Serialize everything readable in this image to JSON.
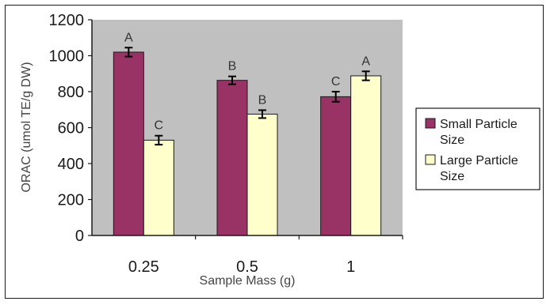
{
  "chart_data": {
    "type": "bar",
    "xlabel": "Sample Mass (g)",
    "ylabel": "ORAC (umol TE/g DW)",
    "categories": [
      "0.25",
      "0.5",
      "1"
    ],
    "ylim": [
      0,
      1200
    ],
    "yticks": [
      0,
      200,
      400,
      600,
      800,
      1000,
      1200
    ],
    "grid": false,
    "legend_position": "right",
    "plot_background": "#c0c0c0",
    "series": [
      {
        "name": "Small Particle Size",
        "legend_lines": [
          "Small Particle",
          "Size"
        ],
        "color": "#993366",
        "values": [
          1020,
          863,
          772
        ],
        "errors": [
          25,
          22,
          28
        ],
        "letters": [
          "A",
          "B",
          "C"
        ]
      },
      {
        "name": "Large Particle Size",
        "legend_lines": [
          "Large Particle",
          "Size"
        ],
        "color": "#ffffcc",
        "values": [
          530,
          675,
          888
        ],
        "errors": [
          25,
          22,
          25
        ],
        "letters": [
          "C",
          "B",
          "A"
        ]
      }
    ]
  }
}
